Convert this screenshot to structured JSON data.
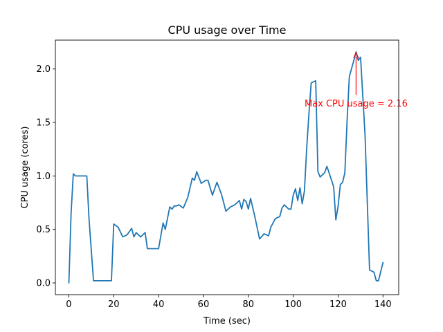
{
  "chart_data": {
    "type": "line",
    "title": "CPU usage over Time",
    "xlabel": "Time (sec)",
    "ylabel": "CPU usage (cores)",
    "xlim": [
      -6,
      147
    ],
    "ylim": [
      -0.11,
      2.27
    ],
    "xticks": [
      0,
      20,
      40,
      60,
      80,
      100,
      120,
      140
    ],
    "yticks": [
      0.0,
      0.5,
      1.0,
      1.5,
      2.0
    ],
    "ytick_labels": [
      "0.0",
      "0.5",
      "1.0",
      "1.5",
      "2.0"
    ],
    "grid": false,
    "series_color": "#1f77b4",
    "annotation_color": "#ff0000",
    "annotation": {
      "text": "Max CPU usage = 2.16",
      "x": 128,
      "y": 2.16,
      "text_x": 128,
      "text_y": 1.68
    },
    "series": [
      {
        "x": [
          0,
          1,
          2,
          3,
          4,
          6,
          8,
          9,
          11,
          13,
          15,
          18,
          19,
          20,
          22,
          24,
          26,
          28,
          29,
          30,
          32,
          34,
          35,
          37,
          39,
          40,
          42,
          43,
          45,
          46,
          47,
          48,
          49,
          51,
          53,
          55,
          56,
          57,
          59,
          61,
          62,
          64,
          66,
          68,
          70,
          72,
          74,
          76,
          77,
          78,
          79,
          80,
          81,
          83,
          85,
          87,
          89,
          90,
          92,
          94,
          95,
          96,
          98,
          99,
          100,
          101,
          102,
          103,
          104,
          105,
          106,
          107,
          108,
          110,
          111,
          112,
          114,
          115,
          118,
          119,
          120,
          121,
          122,
          123,
          124,
          125,
          127,
          128,
          129,
          130,
          132,
          134,
          136,
          137,
          138,
          140
        ],
        "y": [
          0.0,
          0.65,
          1.02,
          1.0,
          1.0,
          1.0,
          1.0,
          0.6,
          0.02,
          0.02,
          0.02,
          0.02,
          0.02,
          0.55,
          0.52,
          0.43,
          0.45,
          0.51,
          0.43,
          0.47,
          0.43,
          0.47,
          0.32,
          0.32,
          0.32,
          0.32,
          0.56,
          0.5,
          0.71,
          0.69,
          0.72,
          0.72,
          0.73,
          0.7,
          0.8,
          0.98,
          0.96,
          1.04,
          0.93,
          0.96,
          0.96,
          0.82,
          0.94,
          0.83,
          0.67,
          0.71,
          0.73,
          0.77,
          0.69,
          0.78,
          0.76,
          0.69,
          0.79,
          0.61,
          0.41,
          0.46,
          0.44,
          0.52,
          0.6,
          0.62,
          0.7,
          0.73,
          0.69,
          0.69,
          0.82,
          0.88,
          0.77,
          0.89,
          0.74,
          0.86,
          1.26,
          1.58,
          1.87,
          1.89,
          1.04,
          0.99,
          1.03,
          1.09,
          0.9,
          0.59,
          0.72,
          0.92,
          0.94,
          1.03,
          1.51,
          1.93,
          2.08,
          2.16,
          2.08,
          2.11,
          1.38,
          0.12,
          0.1,
          0.02,
          0.02,
          0.19
        ]
      }
    ]
  }
}
